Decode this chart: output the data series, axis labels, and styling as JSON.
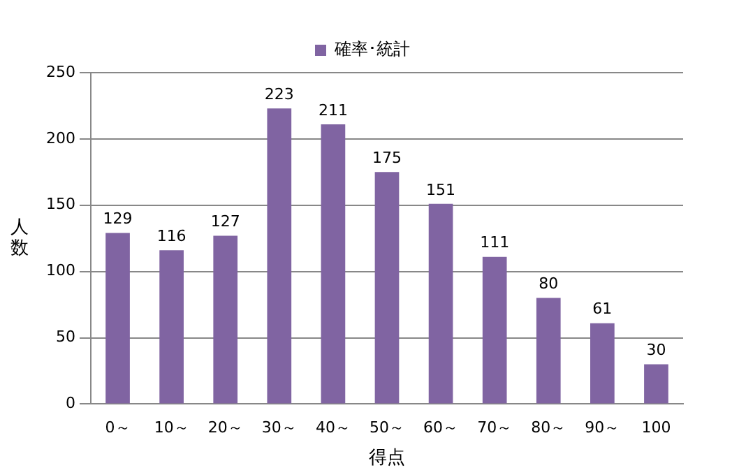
{
  "chart_data": {
    "type": "bar",
    "xlabel": "得点",
    "ylabel": "人数",
    "categories": [
      "0～",
      "10～",
      "20～",
      "30～",
      "40～",
      "50～",
      "60～",
      "70～",
      "80～",
      "90～",
      "100"
    ],
    "series": [
      {
        "name": "確率･統計",
        "color": "#8064a2",
        "values": [
          129,
          116,
          127,
          223,
          211,
          175,
          151,
          111,
          80,
          61,
          30
        ]
      }
    ],
    "ylim": [
      0,
      250
    ],
    "yticks": [
      0,
      50,
      100,
      150,
      200,
      250
    ],
    "grid": "y",
    "legend": "top",
    "data_labels": true
  }
}
